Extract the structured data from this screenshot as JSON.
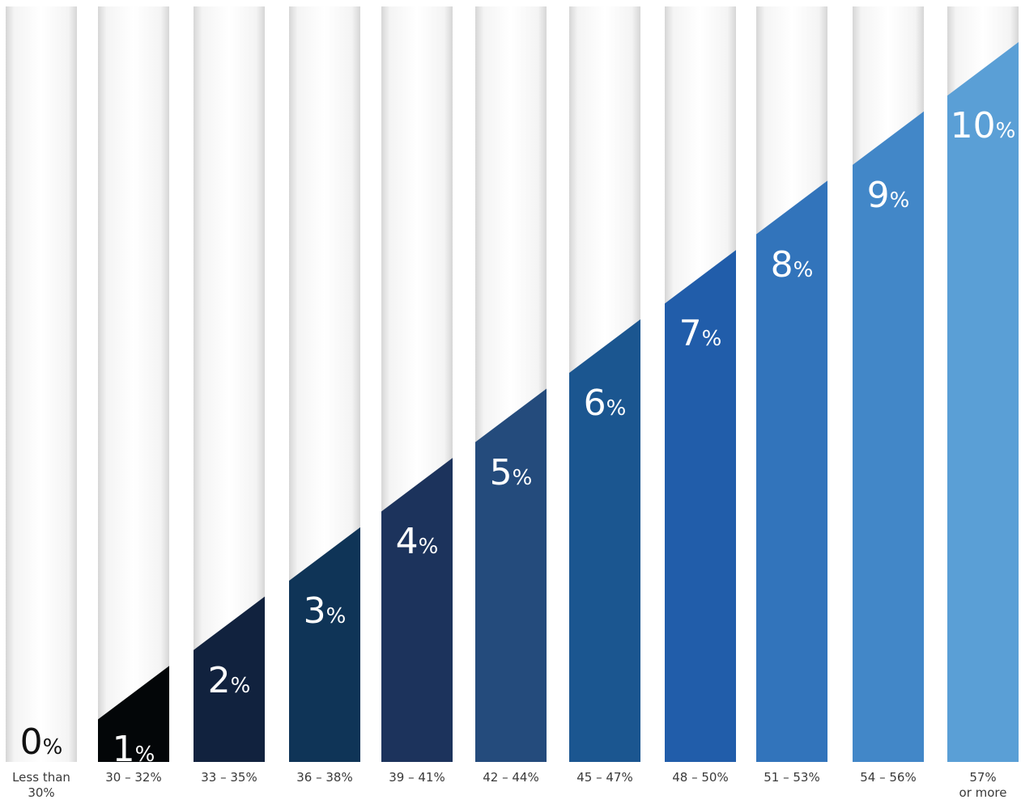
{
  "chart_data": {
    "type": "bar",
    "categories": [
      "Less than\n30%",
      "30 – 32%",
      "33 – 35%",
      "36 – 38%",
      "39 – 41%",
      "42 – 44%",
      "45 – 47%",
      "48 – 50%",
      "51 – 53%",
      "54 – 56%",
      "57%\nor more"
    ],
    "values": [
      0,
      1,
      2,
      3,
      4,
      5,
      6,
      7,
      8,
      9,
      10
    ],
    "data_labels": [
      "0",
      "1",
      "2",
      "3",
      "4",
      "5",
      "6",
      "7",
      "8",
      "9",
      "10"
    ],
    "unit_suffix": "%",
    "title": "",
    "xlabel": "",
    "ylabel": "",
    "ylim": [
      0,
      10.9
    ],
    "grid": false,
    "legend": "none",
    "colors": [
      "#ffffff",
      "#030608",
      "#11223e",
      "#0f3457",
      "#1c335c",
      "#244b7c",
      "#1b5690",
      "#215daa",
      "#3274bb",
      "#4287c8",
      "#5a9fd6"
    ]
  }
}
